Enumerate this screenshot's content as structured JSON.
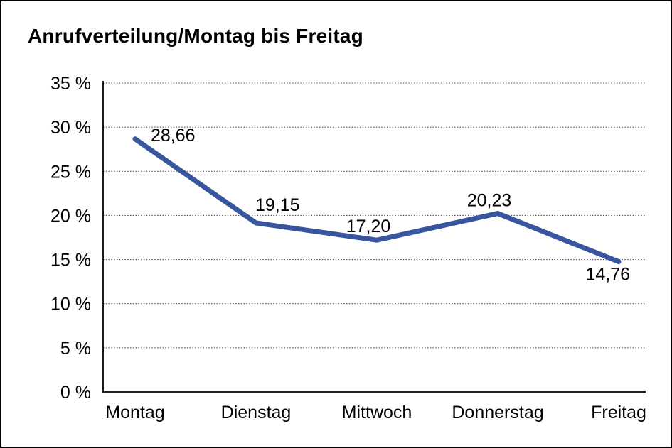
{
  "chart_data": {
    "type": "line",
    "title": "Anrufverteilung/Montag bis Freitag",
    "categories": [
      "Montag",
      "Dienstag",
      "Mittwoch",
      "Donnerstag",
      "Freitag"
    ],
    "series": [
      {
        "name": "Anrufverteilung",
        "values": [
          28.66,
          19.15,
          17.2,
          20.23,
          14.76
        ]
      }
    ],
    "value_labels": [
      "28,66",
      "19,15",
      "17,20",
      "20,23",
      "14,76"
    ],
    "y_ticks": [
      {
        "value": 35,
        "label": "35 %"
      },
      {
        "value": 30,
        "label": "30 %"
      },
      {
        "value": 25,
        "label": "25 %"
      },
      {
        "value": 20,
        "label": "20 %"
      },
      {
        "value": 15,
        "label": "15 %"
      },
      {
        "value": 10,
        "label": "10 %"
      },
      {
        "value": 5,
        "label": "5 %"
      },
      {
        "value": 0,
        "label": "0 %"
      }
    ],
    "ylim": [
      0,
      35
    ],
    "xlabel": "",
    "ylabel": "",
    "grid": "horizontal-dotted",
    "legend_position": "none",
    "colors": {
      "line": "#38569D",
      "grid": "#4a4a4a",
      "axis": "#000000",
      "text": "#000000",
      "background": "#ffffff",
      "border": "#000000"
    }
  }
}
